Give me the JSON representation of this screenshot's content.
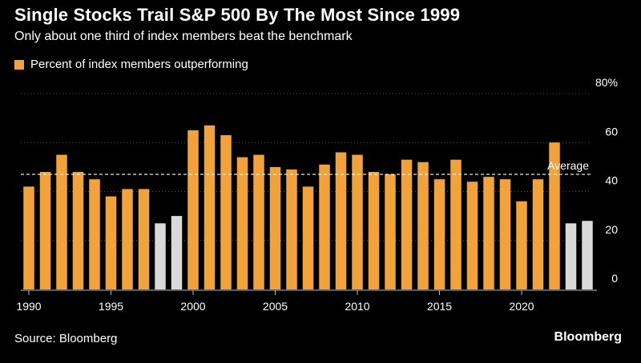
{
  "chart_data": {
    "type": "bar",
    "title": "Single Stocks Trail S&P 500 By The Most Since 1999",
    "subtitle": "Only about one third of index members beat the benchmark",
    "legend": [
      "Percent of index members outperforming"
    ],
    "x": [
      1990,
      1991,
      1992,
      1993,
      1994,
      1995,
      1996,
      1997,
      1998,
      1999,
      2000,
      2001,
      2002,
      2003,
      2004,
      2005,
      2006,
      2007,
      2008,
      2009,
      2010,
      2011,
      2012,
      2013,
      2014,
      2015,
      2016,
      2017,
      2018,
      2019,
      2020,
      2021,
      2022,
      2023,
      2024
    ],
    "values": [
      42,
      48,
      55,
      48,
      45,
      38,
      41,
      41,
      27,
      30,
      65,
      67,
      63,
      54,
      55,
      50,
      49,
      42,
      51,
      56,
      55,
      48,
      47,
      53,
      52,
      45,
      53,
      44,
      46,
      45,
      36,
      45,
      60,
      27,
      28
    ],
    "highlighted": [
      false,
      false,
      false,
      false,
      false,
      false,
      false,
      false,
      true,
      true,
      false,
      false,
      false,
      false,
      false,
      false,
      false,
      false,
      false,
      false,
      false,
      false,
      false,
      false,
      false,
      false,
      false,
      false,
      false,
      false,
      false,
      false,
      false,
      true,
      true
    ],
    "average": 47,
    "average_label": "Average",
    "ylim": [
      0,
      80
    ],
    "y_ticks": [
      0,
      20,
      40,
      60,
      80
    ],
    "y_tick_labels": [
      "0",
      "20",
      "40",
      "60",
      "80%"
    ],
    "x_ticks": [
      1990,
      1995,
      2000,
      2005,
      2010,
      2015,
      2020
    ],
    "x_tick_labels": [
      "1990",
      "1995",
      "2000",
      "2005",
      "2010",
      "2015",
      "2020"
    ],
    "xlabel": "",
    "ylabel": "",
    "grid": true,
    "legend_position": "top-left"
  },
  "footer": {
    "source": "Source: Bloomberg",
    "brand": "Bloomberg"
  },
  "colors": {
    "background": "#000000",
    "bar": "#F2A23A",
    "highlight_bar": "#D9D9D9",
    "text": "#FFFFFF",
    "grid": "#555555",
    "average_line": "#FFFFFF"
  }
}
